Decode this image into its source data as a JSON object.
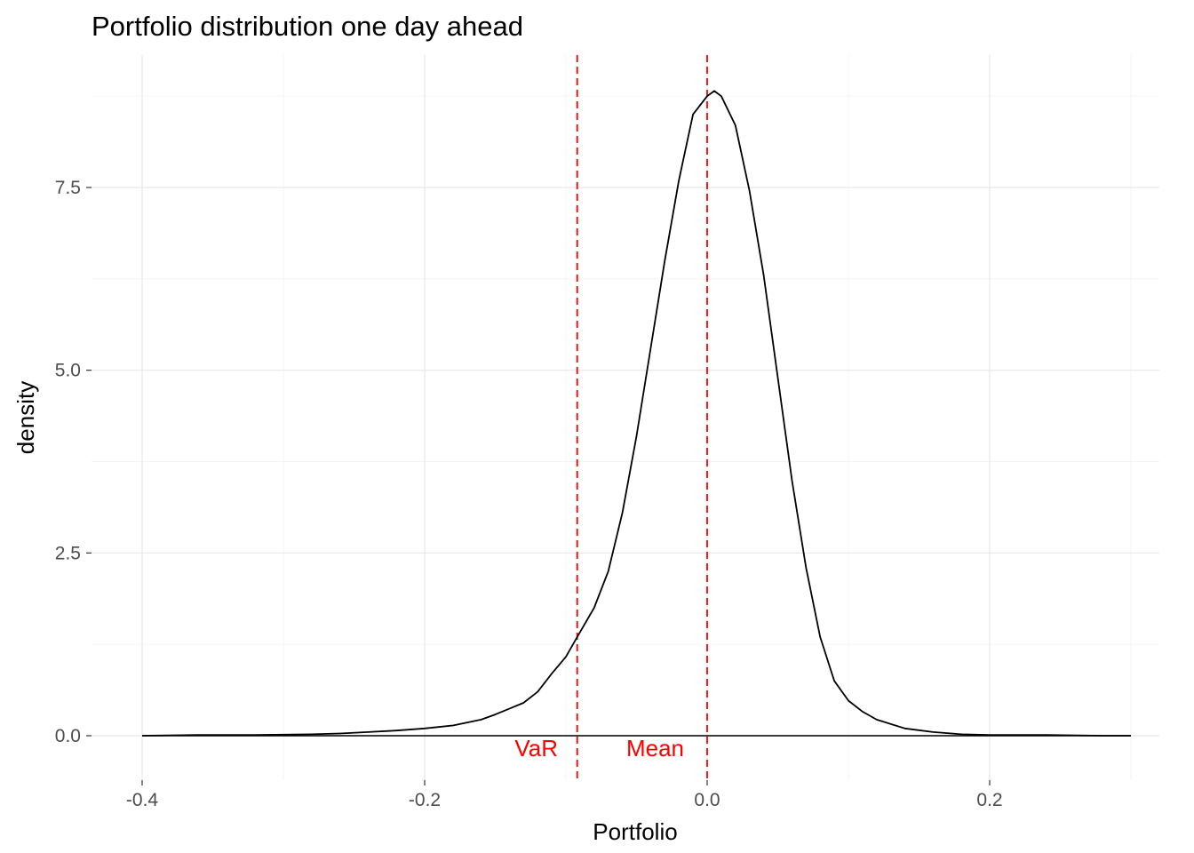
{
  "chart_data": {
    "type": "line",
    "title": "Portfolio distribution one day ahead",
    "xlabel": "Portfolio",
    "ylabel": "density",
    "xlim": [
      -0.4,
      0.3
    ],
    "ylim": [
      0,
      8.8
    ],
    "x_ticks": [
      {
        "value": -0.4,
        "label": "-0.4"
      },
      {
        "value": -0.2,
        "label": "-0.2"
      },
      {
        "value": 0.0,
        "label": "0.0"
      },
      {
        "value": 0.2,
        "label": "0.2"
      }
    ],
    "y_ticks": [
      {
        "value": 0.0,
        "label": "0.0"
      },
      {
        "value": 2.5,
        "label": "2.5"
      },
      {
        "value": 5.0,
        "label": "5.0"
      },
      {
        "value": 7.5,
        "label": "7.5"
      }
    ],
    "grid": true,
    "line_color": "#000000",
    "series": [
      {
        "x": [
          -0.4,
          -0.36,
          -0.32,
          -0.28,
          -0.26,
          -0.24,
          -0.22,
          -0.2,
          -0.18,
          -0.16,
          -0.15,
          -0.14,
          -0.13,
          -0.12,
          -0.11,
          -0.1,
          -0.092,
          -0.08,
          -0.07,
          -0.06,
          -0.05,
          -0.04,
          -0.03,
          -0.02,
          -0.01,
          0.0,
          0.005,
          0.01,
          0.02,
          0.03,
          0.04,
          0.05,
          0.06,
          0.07,
          0.08,
          0.09,
          0.1,
          0.11,
          0.12,
          0.14,
          0.16,
          0.18,
          0.2,
          0.24,
          0.28,
          0.3
        ],
        "y": [
          0.0,
          0.01,
          0.01,
          0.02,
          0.03,
          0.05,
          0.07,
          0.1,
          0.14,
          0.22,
          0.29,
          0.37,
          0.45,
          0.6,
          0.85,
          1.08,
          1.35,
          1.75,
          2.25,
          3.05,
          4.1,
          5.3,
          6.5,
          7.6,
          8.5,
          8.75,
          8.82,
          8.75,
          8.35,
          7.45,
          6.3,
          4.9,
          3.5,
          2.3,
          1.35,
          0.75,
          0.48,
          0.33,
          0.22,
          0.1,
          0.05,
          0.02,
          0.01,
          0.01,
          0.0,
          0.0
        ]
      }
    ],
    "reference_lines": [
      {
        "x": -0.092,
        "label": "VaR",
        "color": "#ff0000",
        "style": "dashed"
      },
      {
        "x": 0.0,
        "label": "Mean",
        "color": "#ff0000",
        "style": "dashed"
      }
    ],
    "baseline": 0.0
  }
}
